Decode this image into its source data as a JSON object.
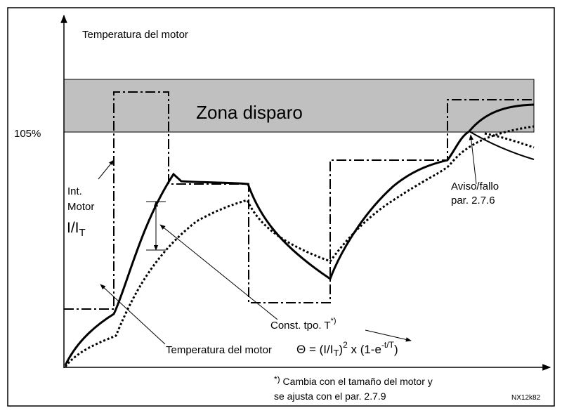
{
  "y_axis_label": "Temperatura del motor",
  "trip_level": "105%",
  "trip_zone": "Zona disparo",
  "current_label": {
    "line1": "Int.",
    "line2": "Motor",
    "ratio": "I/I",
    "ratio_sub": "T"
  },
  "warning_label": {
    "line1": "Aviso/fallo",
    "line2": "par. 2.7.6"
  },
  "time_constant_label": {
    "text": "Const. tpo. T",
    "sup": "*)"
  },
  "temperature_label": "Temperatura del motor",
  "formula": {
    "start": "Θ = (I/I",
    "sub": "T",
    "close": ")",
    "sup": "2",
    "mid": " x (1-e",
    "exp": "-t/T",
    "end": ")"
  },
  "footnote": {
    "mark": "*)",
    "line1": " Cambia con el tamaño del motor y",
    "line2": "se ajusta con el par. 2.7.9"
  },
  "figure_code": "NX12k82"
}
